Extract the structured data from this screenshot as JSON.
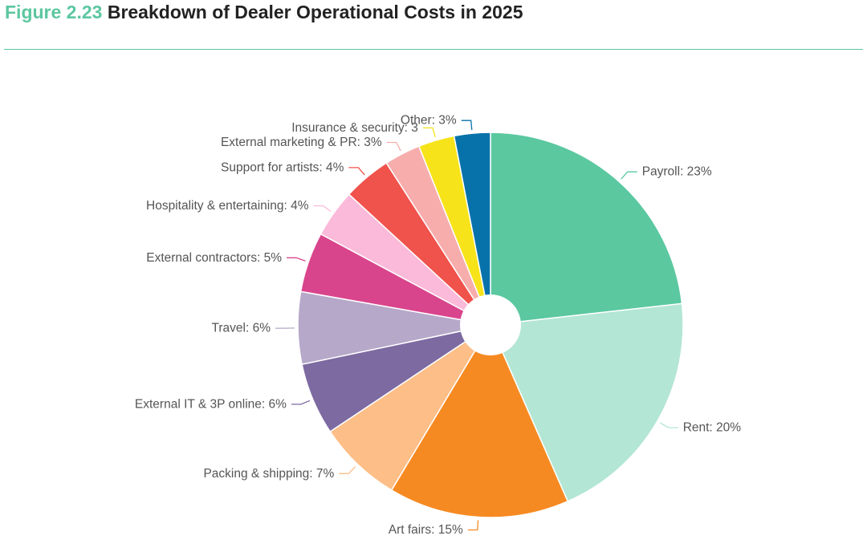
{
  "header": {
    "figure_number": "Figure 2.23",
    "title": "Breakdown of Dealer Operational Costs in 2025"
  },
  "chart_data": {
    "type": "pie",
    "variant": "donut",
    "title": "Breakdown of Dealer Operational Costs in 2025",
    "unit": "%",
    "slices": [
      {
        "name": "Payroll",
        "value": 23,
        "label": "Payroll: 23%",
        "color": "#5bc8a0"
      },
      {
        "name": "Rent",
        "value": 20,
        "label": "Rent: 20%",
        "color": "#b3e6d4"
      },
      {
        "name": "Art fairs",
        "value": 15,
        "label": "Art fairs: 15%",
        "color": "#f68a22"
      },
      {
        "name": "Packing & shipping",
        "value": 7,
        "label": "Packing & shipping: 7%",
        "color": "#fdbe87"
      },
      {
        "name": "External IT & 3P online",
        "value": 6,
        "label": "External IT & 3P online: 6%",
        "color": "#7d6aa1"
      },
      {
        "name": "Travel",
        "value": 6,
        "label": "Travel: 6%",
        "color": "#b6a8c9"
      },
      {
        "name": "External contractors",
        "value": 5,
        "label": "External contractors: 5%",
        "color": "#d9458c"
      },
      {
        "name": "Hospitality & entertaining",
        "value": 4,
        "label": "Hospitality & entertaining: 4%",
        "color": "#fbbad9"
      },
      {
        "name": "Support for artists",
        "value": 4,
        "label": "Support for artists: 4%",
        "color": "#f0524c"
      },
      {
        "name": "External marketing & PR",
        "value": 3,
        "label": "External marketing & PR: 3%",
        "color": "#f8adad"
      },
      {
        "name": "Insurance & security",
        "value": 3,
        "label": "Insurance & security: 3",
        "color": "#f7e31a"
      },
      {
        "name": "Other",
        "value": 3,
        "label": "Other: 3%",
        "color": "#0772aa"
      }
    ]
  }
}
